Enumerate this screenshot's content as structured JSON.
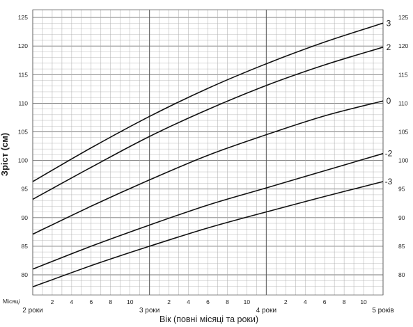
{
  "chart_data": {
    "type": "line",
    "title": "",
    "xlabel": "Вік (повні місяці та  роки)",
    "ylabel": "Зріст (см)",
    "x_unit_label": "Місяці",
    "x_range_months": [
      24,
      60
    ],
    "year_labels": [
      {
        "month": 24,
        "label": "2 роки"
      },
      {
        "month": 36,
        "label": "3 роки"
      },
      {
        "month": 48,
        "label": "4 роки"
      },
      {
        "month": 60,
        "label": "5 років"
      }
    ],
    "month_ticks": [
      {
        "month": 26,
        "label": "2"
      },
      {
        "month": 28,
        "label": "4"
      },
      {
        "month": 30,
        "label": "6"
      },
      {
        "month": 32,
        "label": "8"
      },
      {
        "month": 34,
        "label": "10"
      },
      {
        "month": 38,
        "label": "2"
      },
      {
        "month": 40,
        "label": "4"
      },
      {
        "month": 42,
        "label": "6"
      },
      {
        "month": 44,
        "label": "8"
      },
      {
        "month": 46,
        "label": "10"
      },
      {
        "month": 50,
        "label": "2"
      },
      {
        "month": 52,
        "label": "4"
      },
      {
        "month": 54,
        "label": "6"
      },
      {
        "month": 56,
        "label": "8"
      },
      {
        "month": 58,
        "label": "10"
      }
    ],
    "ylim": [
      77,
      125
    ],
    "y_ticks": [
      80,
      85,
      90,
      95,
      100,
      105,
      110,
      115,
      120,
      125
    ],
    "grid": true,
    "series": [
      {
        "name": "3",
        "x": [
          24,
          30,
          36,
          42,
          48,
          54,
          60
        ],
        "y": [
          96.3,
          102.2,
          107.7,
          112.6,
          116.9,
          120.7,
          124.0
        ]
      },
      {
        "name": "2",
        "x": [
          24,
          30,
          36,
          42,
          48,
          54,
          60
        ],
        "y": [
          93.2,
          98.8,
          104.2,
          108.9,
          113.1,
          116.7,
          119.8
        ]
      },
      {
        "name": "0",
        "x": [
          24,
          30,
          36,
          42,
          48,
          54,
          60
        ],
        "y": [
          87.1,
          92.0,
          96.6,
          100.9,
          104.5,
          107.8,
          110.4
        ]
      },
      {
        "name": "-2",
        "x": [
          24,
          30,
          36,
          42,
          48,
          54,
          60
        ],
        "y": [
          81.0,
          85.0,
          88.7,
          92.2,
          95.2,
          98.2,
          101.2
        ]
      },
      {
        "name": "-3",
        "x": [
          24,
          30,
          36,
          42,
          48,
          54,
          60
        ],
        "y": [
          77.9,
          81.6,
          85.0,
          88.2,
          91.0,
          93.7,
          96.3
        ]
      }
    ]
  }
}
